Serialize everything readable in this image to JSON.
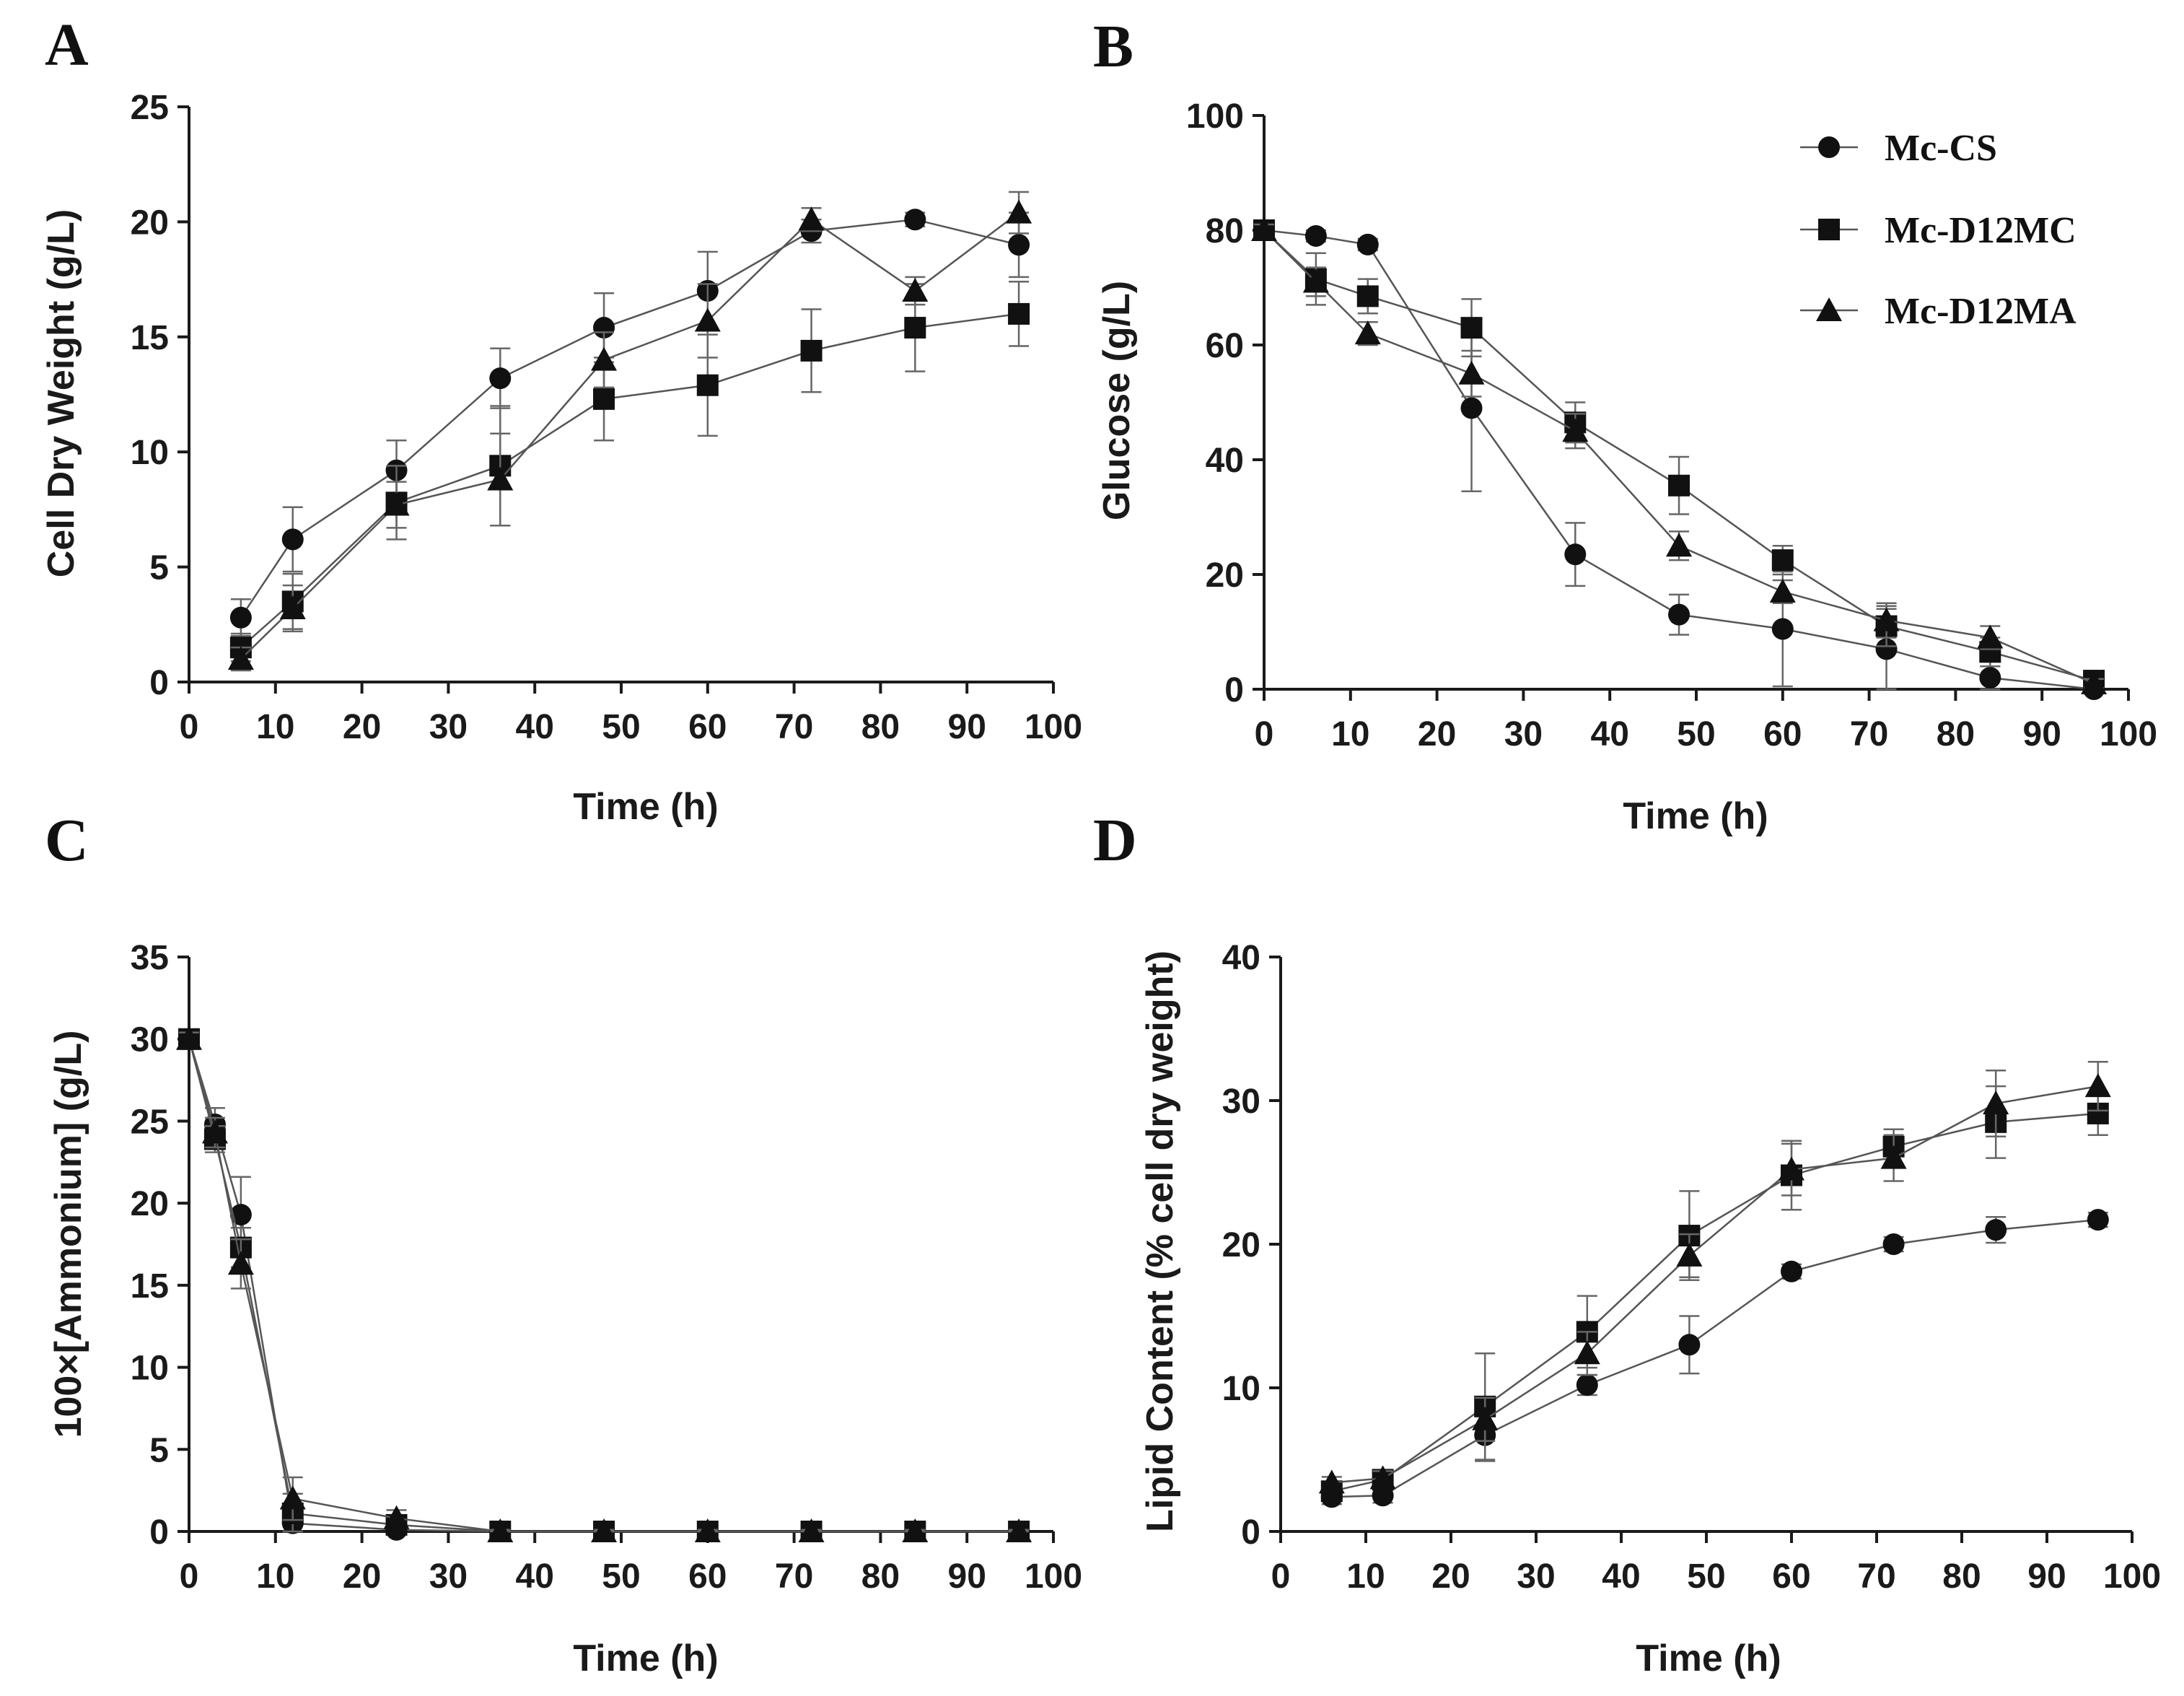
{
  "chart_data": [
    {
      "panel": "A",
      "type": "line",
      "xlabel": "Time (h)",
      "ylabel": "Cell Dry Weight (g/L)",
      "xlim": [
        0,
        100
      ],
      "ylim": [
        0,
        25
      ],
      "xticks": [
        0,
        10,
        20,
        30,
        40,
        50,
        60,
        70,
        80,
        90,
        100
      ],
      "yticks": [
        0,
        5,
        10,
        15,
        20,
        25
      ],
      "series": [
        {
          "name": "Mc-CS",
          "marker": "circle",
          "x": [
            6,
            12,
            24,
            36,
            48,
            60,
            72,
            84,
            96
          ],
          "y": [
            2.8,
            6.2,
            9.2,
            13.2,
            15.4,
            17.0,
            19.6,
            20.1,
            19.0
          ],
          "err": [
            0.8,
            1.4,
            1.3,
            1.3,
            1.5,
            1.7,
            0.5,
            0.3,
            1.4
          ]
        },
        {
          "name": "Mc-D12MC",
          "marker": "square",
          "x": [
            6,
            12,
            24,
            36,
            48,
            60,
            72,
            84,
            96
          ],
          "y": [
            1.5,
            3.5,
            7.8,
            9.4,
            12.3,
            12.9,
            14.4,
            15.4,
            16.0
          ],
          "err": [
            0.6,
            1.2,
            1.6,
            2.6,
            1.8,
            2.2,
            1.8,
            1.9,
            1.4
          ]
        },
        {
          "name": "Mc-D12MA",
          "marker": "triangle",
          "x": [
            6,
            12,
            24,
            36,
            48,
            60,
            72,
            84,
            96
          ],
          "y": [
            1.0,
            3.2,
            7.7,
            8.8,
            14.0,
            15.7,
            20.1,
            17.0,
            20.4
          ],
          "err": [
            0.5,
            1.0,
            1.0,
            2.0,
            1.2,
            1.6,
            0.5,
            0.6,
            0.9
          ]
        }
      ]
    },
    {
      "panel": "B",
      "type": "line",
      "xlabel": "Time (h)",
      "ylabel": "Glucose (g/L)",
      "xlim": [
        0,
        100
      ],
      "ylim": [
        0,
        100
      ],
      "xticks": [
        0,
        10,
        20,
        30,
        40,
        50,
        60,
        70,
        80,
        90,
        100
      ],
      "yticks": [
        0,
        20,
        40,
        60,
        80,
        100
      ],
      "legend": [
        "Mc-CS",
        "Mc-D12MC",
        "Mc-D12MA"
      ],
      "series": [
        {
          "name": "Mc-CS",
          "marker": "circle",
          "x": [
            0,
            6,
            12,
            24,
            36,
            48,
            60,
            72,
            84,
            96
          ],
          "y": [
            80,
            79,
            77.5,
            49,
            23.5,
            13,
            10.5,
            7,
            2,
            0
          ],
          "err": [
            1,
            1,
            1,
            14.5,
            5.5,
            3.5,
            10,
            7,
            2,
            0.5
          ]
        },
        {
          "name": "Mc-D12MC",
          "marker": "square",
          "x": [
            0,
            6,
            12,
            24,
            36,
            48,
            60,
            72,
            84,
            96
          ],
          "y": [
            80,
            71.5,
            68.5,
            63,
            46.5,
            35.5,
            22.5,
            11,
            6.5,
            1.5
          ],
          "err": [
            1,
            4.5,
            3,
            5,
            3.5,
            5,
            2.5,
            3.5,
            2.5,
            1
          ]
        },
        {
          "name": "Mc-D12MA",
          "marker": "triangle",
          "x": [
            0,
            6,
            12,
            24,
            36,
            48,
            60,
            72,
            84,
            96
          ],
          "y": [
            80,
            71,
            62,
            55,
            45,
            25,
            17,
            12,
            9,
            1
          ],
          "err": [
            1,
            2.5,
            2,
            4,
            3,
            2.5,
            2,
            3,
            2,
            0.8
          ]
        }
      ]
    },
    {
      "panel": "C",
      "type": "line",
      "xlabel": "Time (h)",
      "ylabel": "100×[Ammonium] (g/L)",
      "xlim": [
        0,
        100
      ],
      "ylim": [
        0,
        35
      ],
      "xticks": [
        0,
        10,
        20,
        30,
        40,
        50,
        60,
        70,
        80,
        90,
        100
      ],
      "yticks": [
        0,
        5,
        10,
        15,
        20,
        25,
        30,
        35
      ],
      "series": [
        {
          "name": "Mc-CS",
          "marker": "circle",
          "x": [
            0,
            3,
            6,
            12,
            24,
            36,
            48,
            60,
            72,
            84,
            96
          ],
          "y": [
            30,
            24.8,
            19.3,
            0.5,
            0.1,
            0,
            0,
            0,
            0,
            0,
            0
          ],
          "err": [
            0.4,
            1.0,
            2.3,
            0.6,
            0.3,
            0.1,
            0.1,
            0.1,
            0.1,
            0.1,
            0.1
          ]
        },
        {
          "name": "Mc-D12MC",
          "marker": "square",
          "x": [
            0,
            3,
            6,
            12,
            24,
            36,
            48,
            60,
            72,
            84,
            96
          ],
          "y": [
            30,
            23.9,
            17.3,
            1.1,
            0.4,
            0,
            0,
            0,
            0,
            0,
            0
          ],
          "err": [
            0.4,
            0.8,
            1.2,
            1.2,
            0.4,
            0.1,
            0.1,
            0.1,
            0.1,
            0.1,
            0.1
          ]
        },
        {
          "name": "Mc-D12MA",
          "marker": "triangle",
          "x": [
            0,
            3,
            6,
            12,
            24,
            36,
            48,
            60,
            72,
            84,
            96
          ],
          "y": [
            30,
            24.3,
            16.3,
            2.0,
            0.8,
            0,
            0,
            0,
            0,
            0,
            0
          ],
          "err": [
            0.4,
            0.9,
            1.5,
            1.3,
            0.5,
            0.1,
            0.1,
            0.1,
            0.1,
            0.1,
            0.1
          ]
        }
      ]
    },
    {
      "panel": "D",
      "type": "line",
      "xlabel": "Time (h)",
      "ylabel": "Lipid Content (% cell dry weight)",
      "xlim": [
        0,
        100
      ],
      "ylim": [
        0,
        40
      ],
      "xticks": [
        0,
        10,
        20,
        30,
        40,
        50,
        60,
        70,
        80,
        90,
        100
      ],
      "yticks": [
        0,
        10,
        20,
        30,
        40
      ],
      "series": [
        {
          "name": "Mc-CS",
          "marker": "circle",
          "x": [
            6,
            12,
            24,
            36,
            48,
            60,
            72,
            84,
            96
          ],
          "y": [
            2.4,
            2.5,
            6.7,
            10.2,
            13.0,
            18.1,
            20.0,
            21.0,
            21.7
          ],
          "err": [
            0.5,
            0.5,
            1.8,
            0.7,
            2.0,
            0.5,
            0.5,
            0.9,
            0.5
          ]
        },
        {
          "name": "Mc-D12MC",
          "marker": "square",
          "x": [
            6,
            12,
            24,
            36,
            48,
            60,
            72,
            84,
            96
          ],
          "y": [
            2.8,
            3.6,
            8.7,
            13.9,
            20.6,
            24.8,
            26.8,
            28.5,
            29.1
          ],
          "err": [
            0.5,
            0.6,
            3.7,
            2.5,
            3.1,
            2.4,
            1.2,
            2.5,
            1.5
          ]
        },
        {
          "name": "Mc-D12MA",
          "marker": "triangle",
          "x": [
            6,
            12,
            24,
            36,
            48,
            60,
            72,
            84,
            96
          ],
          "y": [
            3.4,
            3.7,
            7.8,
            12.4,
            19.2,
            25.2,
            26.0,
            29.8,
            31.0
          ],
          "err": [
            0.4,
            0.5,
            1.5,
            1.5,
            1.5,
            1.8,
            1.6,
            2.3,
            1.7
          ]
        }
      ]
    }
  ]
}
